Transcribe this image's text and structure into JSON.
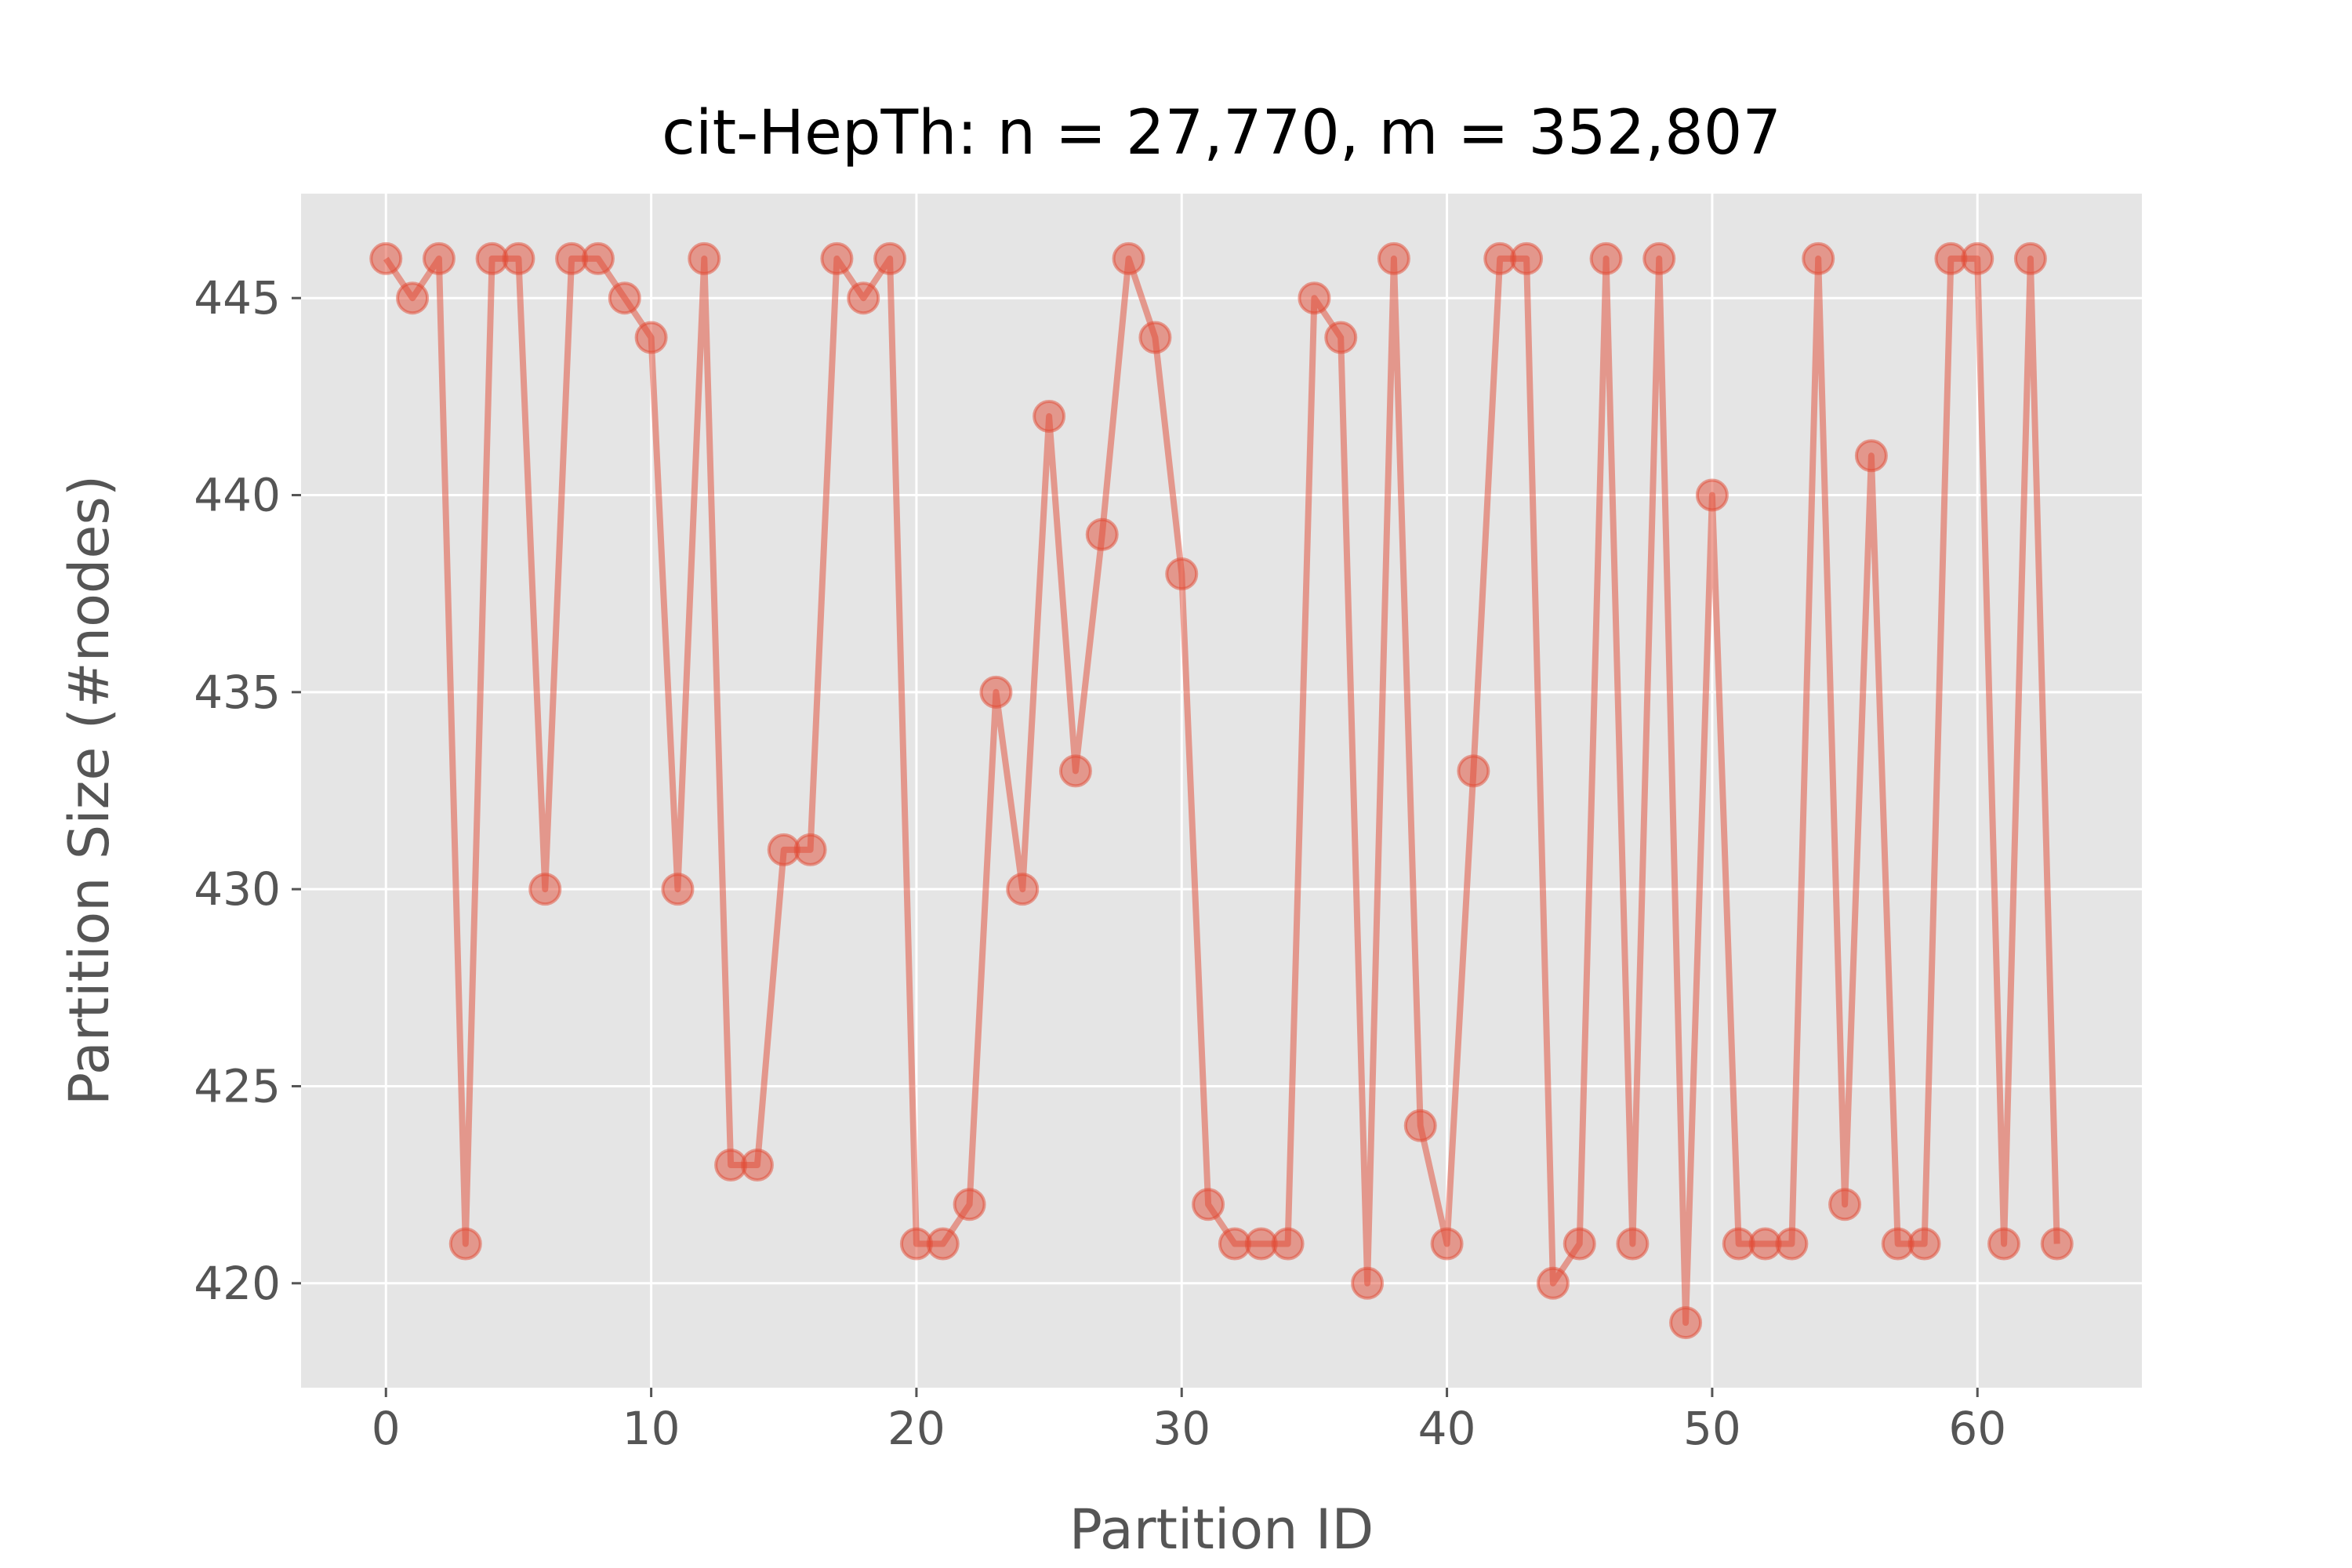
{
  "chart_data": {
    "type": "line",
    "title": "cit-HepTh: n = 27,770, m = 352,807",
    "xlabel": "Partition ID",
    "ylabel": "Partition Size (#nodes)",
    "xlim": [
      -3.2,
      66.2
    ],
    "ylim": [
      417.35,
      447.65
    ],
    "xticks": [
      0,
      10,
      20,
      30,
      40,
      50,
      60
    ],
    "yticks": [
      420,
      425,
      430,
      435,
      440,
      445
    ],
    "grid": true,
    "legend": "none",
    "style": {
      "background": "#e5e5e5",
      "series_color": "#e24a33",
      "marker": "circle",
      "alpha": 0.5
    },
    "series": [
      {
        "x": [
          0,
          1,
          2,
          3,
          4,
          5,
          6,
          7,
          8,
          9,
          10,
          11,
          12,
          13,
          14,
          15,
          16,
          17,
          18,
          19,
          20,
          21,
          22,
          23,
          24,
          25,
          26,
          27,
          28,
          29,
          30,
          31,
          32,
          33,
          34,
          35,
          36,
          37,
          38,
          39,
          40,
          41,
          42,
          43,
          44,
          45,
          46,
          47,
          48,
          49,
          50,
          51,
          52,
          53,
          54,
          55,
          56,
          57,
          58,
          59,
          60,
          61,
          62,
          63
        ],
        "values": [
          446,
          445,
          446,
          421,
          446,
          446,
          430,
          446,
          446,
          445,
          444,
          430,
          446,
          423,
          423,
          431,
          431,
          446,
          445,
          446,
          421,
          421,
          422,
          435,
          430,
          442,
          433,
          439,
          446,
          444,
          438,
          422,
          421,
          421,
          421,
          445,
          444,
          420,
          446,
          424,
          421,
          433,
          446,
          446,
          420,
          421,
          446,
          421,
          446,
          419,
          440,
          421,
          421,
          421,
          446,
          422,
          441,
          421,
          421,
          446,
          446,
          421,
          446,
          421
        ]
      }
    ]
  }
}
